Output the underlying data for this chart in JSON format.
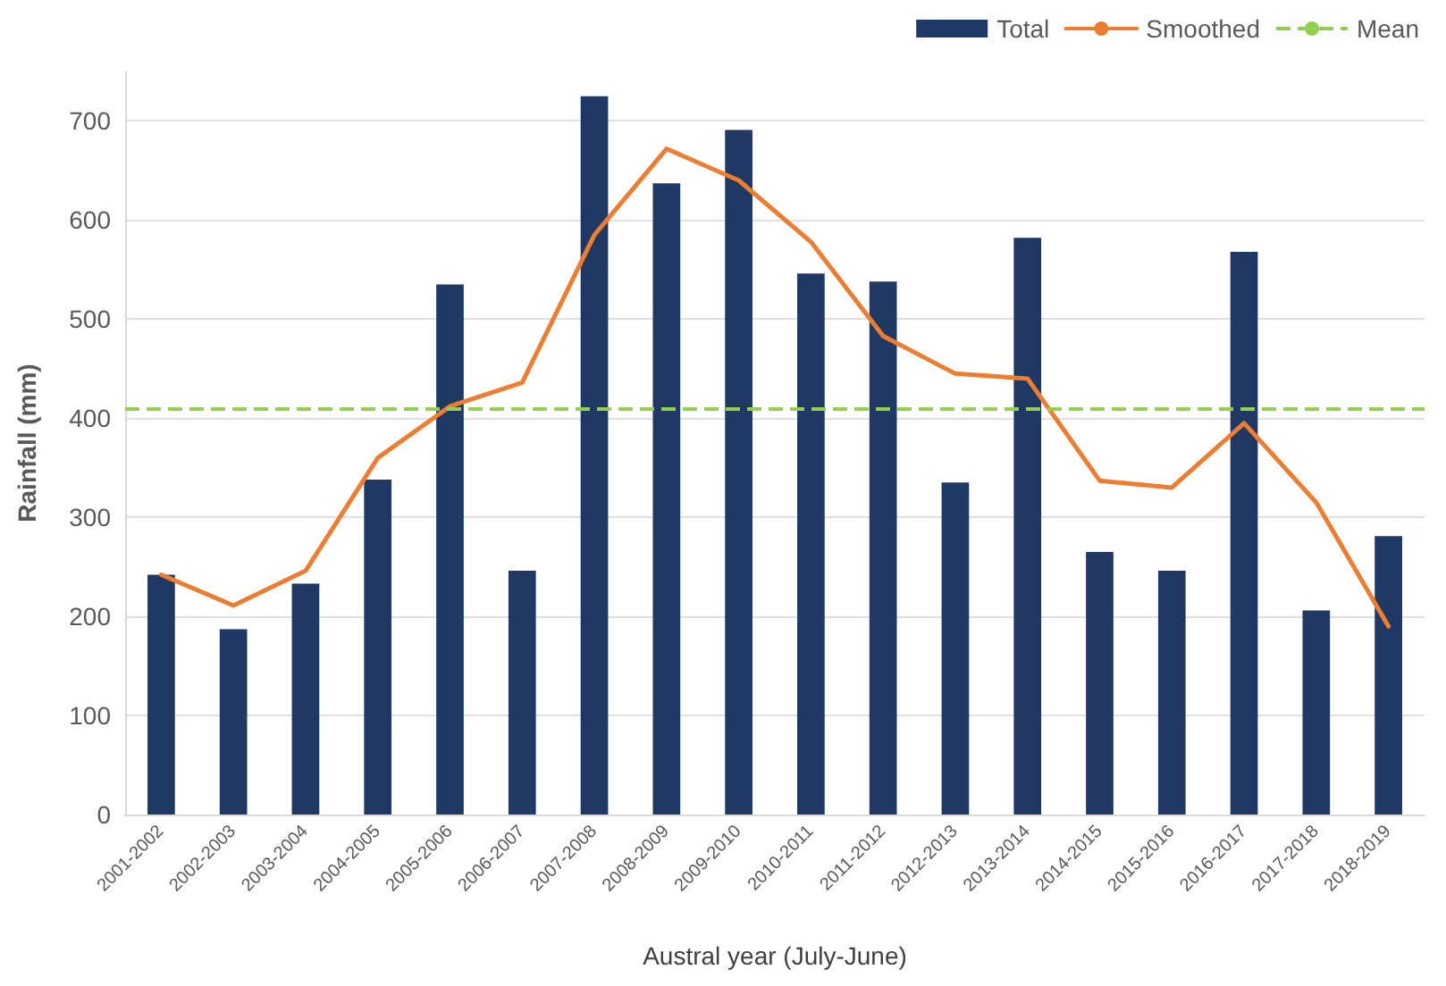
{
  "chart_data": {
    "type": "bar",
    "xlabel": "Austral year (July-June)",
    "ylabel": "Rainfall (mm)",
    "categories": [
      "2001-2002",
      "2002-2003",
      "2003-2004",
      "2004-2005",
      "2005-2006",
      "2006-2007",
      "2007-2008",
      "2008-2009",
      "2009-2010",
      "2010-2011",
      "2011-2012",
      "2012-2013",
      "2013-2014",
      "2014-2015",
      "2015-2016",
      "2016-2017",
      "2017-2018",
      "2018-2019"
    ],
    "series": [
      {
        "name": "Total",
        "color": "#1f3864",
        "values": [
          242,
          187,
          233,
          338,
          535,
          246,
          725,
          637,
          691,
          546,
          538,
          335,
          582,
          265,
          246,
          568,
          206,
          281
        ]
      },
      {
        "name": "Smoothed",
        "type": "line",
        "color": "#ed7d31",
        "marker": "none",
        "line_style": "solid",
        "values": [
          242,
          211,
          246,
          360,
          412,
          436,
          585,
          672,
          640,
          578,
          483,
          445,
          440,
          337,
          330,
          395,
          315,
          190
        ]
      }
    ],
    "ref_lines": [
      {
        "axis": "y",
        "value": 410,
        "label": "Mean",
        "color": "#92d050",
        "line_style": "dashed"
      }
    ],
    "ylim": [
      0,
      750
    ],
    "yticks": [
      0,
      100,
      200,
      300,
      400,
      500,
      600,
      700
    ],
    "grid": "y",
    "legend": "top right"
  }
}
